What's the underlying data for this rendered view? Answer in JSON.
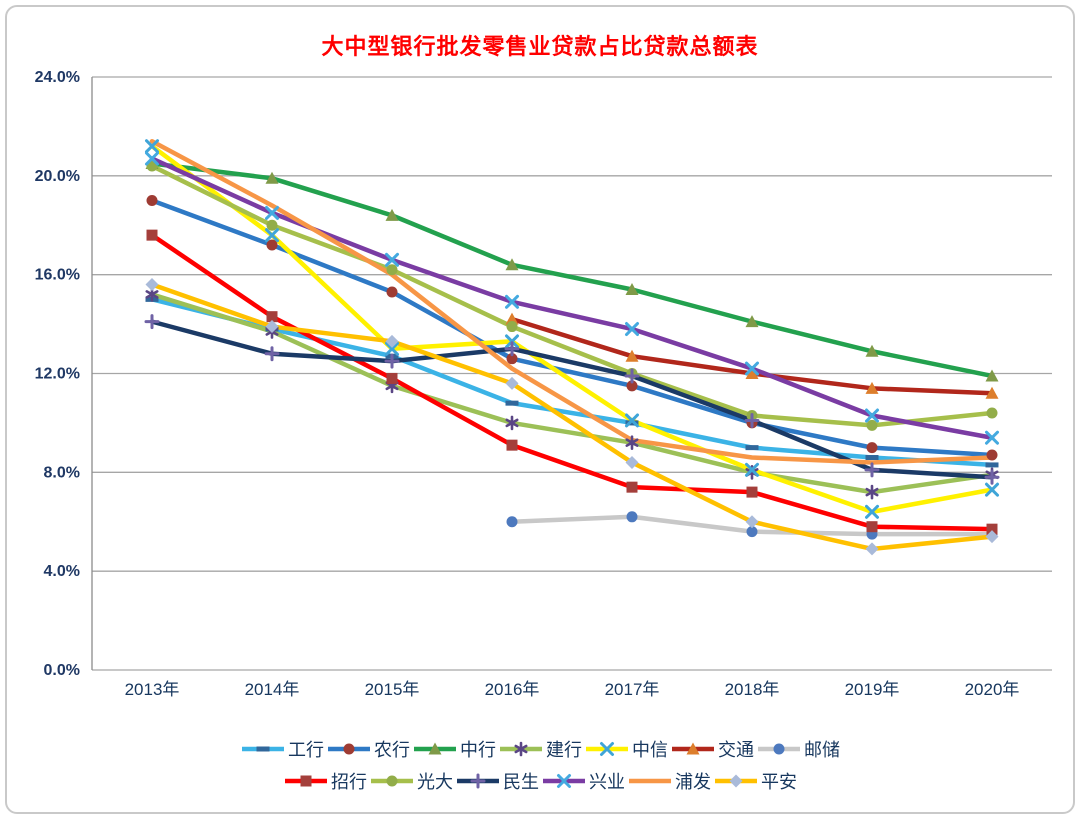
{
  "chart_data": {
    "type": "line",
    "title": "大中型银行批发零售业贷款占比贷款总额表",
    "title_color": "#FF0000",
    "categories": [
      "2013年",
      "2014年",
      "2015年",
      "2016年",
      "2017年",
      "2018年",
      "2019年",
      "2020年"
    ],
    "y_axis": {
      "min": 0,
      "max": 24,
      "step": 4,
      "labels": [
        "0.0%",
        "4.0%",
        "8.0%",
        "12.0%",
        "16.0%",
        "20.0%",
        "24.0%"
      ],
      "label_color": "#1f3864"
    },
    "x_axis": {
      "label_color": "#17375e"
    },
    "grid": true,
    "grid_color": "#a6a6a6",
    "axis_line_color": "#8c8c8c",
    "legend_position": "bottom",
    "unit": "percent",
    "series": [
      {
        "key": "icbc",
        "name": "工行",
        "line_color": "#3bb3e6",
        "marker": "dash",
        "marker_color": "#31679b",
        "values": [
          15.0,
          13.8,
          12.7,
          10.8,
          10.0,
          9.0,
          8.6,
          8.3
        ]
      },
      {
        "key": "abc",
        "name": "农行",
        "line_color": "#2e79c5",
        "marker": "circle",
        "marker_color": "#9e3b33",
        "values": [
          19.0,
          17.2,
          15.3,
          12.6,
          11.5,
          10.0,
          9.0,
          8.7
        ]
      },
      {
        "key": "boc",
        "name": "中行",
        "line_color": "#23a14e",
        "marker": "triangle",
        "marker_color": "#7f9a48",
        "values": [
          20.5,
          19.9,
          18.4,
          16.4,
          15.4,
          14.1,
          12.9,
          11.9
        ]
      },
      {
        "key": "ccb",
        "name": "建行",
        "line_color": "#9cc057",
        "marker": "asterisk",
        "marker_color": "#5a4685",
        "values": [
          15.2,
          13.7,
          11.5,
          10.0,
          9.2,
          8.0,
          7.2,
          7.9
        ]
      },
      {
        "key": "citic",
        "name": "中信",
        "line_color": "#fff100",
        "marker": "x",
        "marker_color": "#3fa5d8",
        "values": [
          21.2,
          17.6,
          13.0,
          13.3,
          10.1,
          8.1,
          6.4,
          7.3
        ]
      },
      {
        "key": "bocom",
        "name": "交通",
        "line_color": "#b1271b",
        "marker": "triangle",
        "marker_color": "#dd7e2c",
        "values": [
          null,
          null,
          null,
          14.2,
          12.7,
          12.0,
          11.4,
          11.2
        ]
      },
      {
        "key": "psbc",
        "name": "邮储",
        "line_color": "#c8c8c8",
        "marker": "circle",
        "marker_color": "#4d79be",
        "values": [
          null,
          null,
          null,
          6.0,
          6.2,
          5.6,
          5.5,
          5.5
        ]
      },
      {
        "key": "cmb",
        "name": "招行",
        "line_color": "#fe0000",
        "marker": "square",
        "marker_color": "#a43f3b",
        "values": [
          17.6,
          14.3,
          11.8,
          9.1,
          7.4,
          7.2,
          5.8,
          5.7
        ]
      },
      {
        "key": "ceb",
        "name": "光大",
        "line_color": "#a6bf4b",
        "marker": "circle",
        "marker_color": "#92ad49",
        "values": [
          20.4,
          18.0,
          16.2,
          13.9,
          12.0,
          10.3,
          9.9,
          10.4
        ]
      },
      {
        "key": "minsheng",
        "name": "民生",
        "line_color": "#1b3a66",
        "marker": "plus",
        "marker_color": "#6f62a5",
        "values": [
          14.1,
          12.8,
          12.5,
          13.0,
          11.9,
          10.1,
          8.1,
          7.8
        ]
      },
      {
        "key": "cib",
        "name": "兴业",
        "line_color": "#7a3ca3",
        "marker": "x",
        "marker_color": "#44aae0",
        "values": [
          20.7,
          18.5,
          16.6,
          14.9,
          13.8,
          12.2,
          10.3,
          9.4
        ]
      },
      {
        "key": "spdb",
        "name": "浦发",
        "line_color": "#f79646",
        "marker": "none",
        "marker_color": "#f79646",
        "values": [
          21.4,
          18.8,
          16.0,
          12.2,
          9.3,
          8.6,
          8.4,
          8.6
        ]
      },
      {
        "key": "pingan",
        "name": "平安",
        "line_color": "#ffc000",
        "marker": "diamond",
        "marker_color": "#a9bad9",
        "values": [
          15.6,
          13.9,
          13.3,
          11.6,
          8.4,
          6.0,
          4.9,
          5.4
        ]
      }
    ],
    "legend_rows": [
      [
        "icbc",
        "abc",
        "boc",
        "ccb",
        "citic",
        "bocom",
        "psbc"
      ],
      [
        "cmb",
        "ceb",
        "minsheng",
        "cib",
        "spdb",
        "pingan"
      ]
    ]
  }
}
